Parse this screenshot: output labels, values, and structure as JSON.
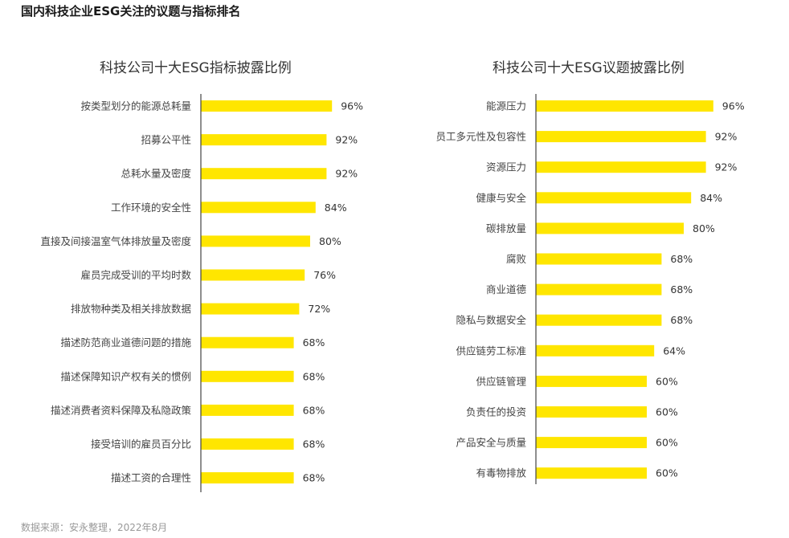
{
  "page_title": "国内科技企业ESG关注的议题与指标排名",
  "source": "数据来源：安永整理，2022年8月",
  "colors": {
    "bar": "#FFE600",
    "axis": "#444444"
  },
  "chart_data": [
    {
      "type": "bar",
      "orientation": "horizontal",
      "title": "科技公司十大ESG指标披露比例",
      "categories": [
        "按类型划分的能源总耗量",
        "招募公平性",
        "总耗水量及密度",
        "工作环境的安全性",
        "直接及间接温室气体排放量及密度",
        "雇员完成受训的平均时数",
        "排放物种类及相关排放数据",
        "描述防范商业道德问题的措施",
        "描述保障知识产权有关的惯例",
        "描述消费者资料保障及私隐政策",
        "接受培训的雇员百分比",
        "描述工资的合理性"
      ],
      "values": [
        96,
        92,
        92,
        84,
        80,
        76,
        72,
        68,
        68,
        68,
        68,
        68
      ],
      "value_labels": [
        "96%",
        "92%",
        "92%",
        "84%",
        "80%",
        "76%",
        "72%",
        "68%",
        "68%",
        "68%",
        "68%",
        "68%"
      ],
      "unit": "%",
      "xlim": [
        0,
        100
      ],
      "grid": false,
      "legend": "none"
    },
    {
      "type": "bar",
      "orientation": "horizontal",
      "title": "科技公司十大ESG议题披露比例",
      "categories": [
        "能源压力",
        "员工多元性及包容性",
        "资源压力",
        "健康与安全",
        "碳排放量",
        "腐败",
        "商业道德",
        "隐私与数据安全",
        "供应链劳工标准",
        "供应链管理",
        "负责任的投资",
        "产品安全与质量",
        "有毒物排放"
      ],
      "values": [
        96,
        92,
        92,
        84,
        80,
        68,
        68,
        68,
        64,
        60,
        60,
        60,
        60
      ],
      "value_labels": [
        "96%",
        "92%",
        "92%",
        "84%",
        "80%",
        "68%",
        "68%",
        "68%",
        "64%",
        "60%",
        "60%",
        "60%",
        "60%"
      ],
      "unit": "%",
      "xlim": [
        0,
        100
      ],
      "grid": false,
      "legend": "none"
    }
  ]
}
